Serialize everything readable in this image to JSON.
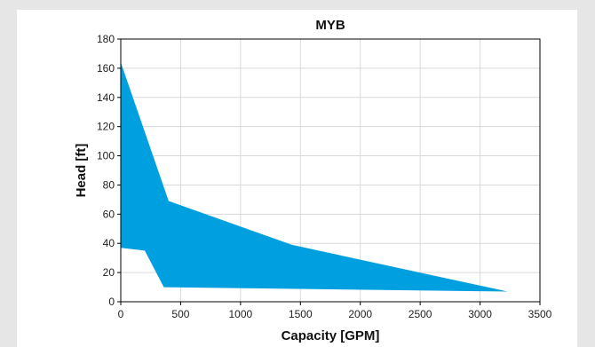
{
  "colors": {
    "page_background": "#e6e6e6",
    "card_background": "#ffffff",
    "fill": "#009fdf",
    "grid": "#d9d9d9",
    "axis": "#000000"
  },
  "chart_data": {
    "type": "area",
    "title": "MYB",
    "xlabel": "Capacity [GPM]",
    "ylabel": "Head [ft]",
    "xlim": [
      0,
      3500
    ],
    "ylim": [
      0,
      180
    ],
    "xticks": [
      0,
      500,
      1000,
      1500,
      2000,
      2500,
      3000,
      3500
    ],
    "yticks": [
      0,
      20,
      40,
      60,
      80,
      100,
      120,
      140,
      160,
      180
    ],
    "grid": true,
    "legend": "none",
    "series": [
      {
        "color": "#009fdf",
        "polygon": [
          [
            0,
            164
          ],
          [
            400,
            69
          ],
          [
            1430,
            39
          ],
          [
            3230,
            7
          ],
          [
            360,
            10
          ],
          [
            200,
            35
          ],
          [
            0,
            37
          ]
        ]
      }
    ]
  }
}
